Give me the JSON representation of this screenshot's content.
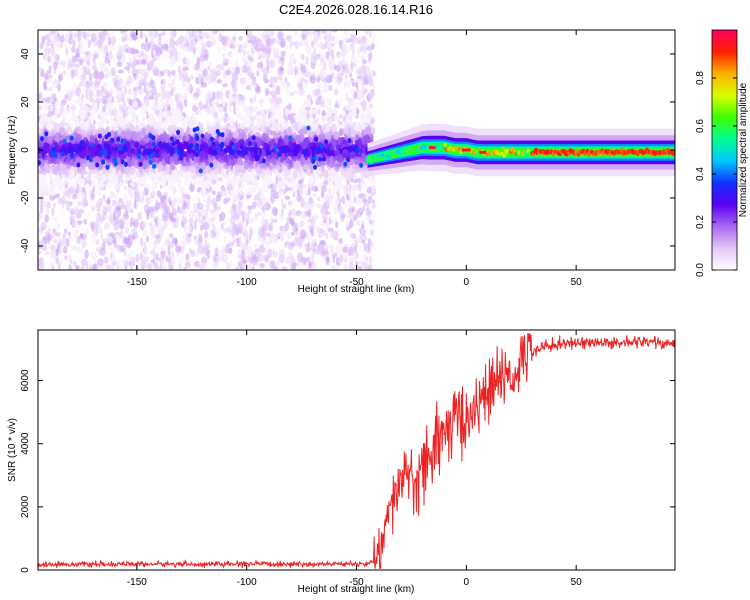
{
  "title": "C2E4.2026.028.16.14.R16",
  "chart_data": [
    {
      "type": "heatmap",
      "xlabel": "Height of straight line (km)",
      "ylabel": "Frequency (Hz)",
      "xlim": [
        -195,
        95
      ],
      "ylim": [
        -50,
        50
      ],
      "xticks": [
        -150,
        -100,
        -50,
        0,
        50
      ],
      "yticks": [
        -40,
        -20,
        0,
        20,
        40
      ],
      "noise_region_x": [
        -195,
        -45
      ],
      "signal_ridge": {
        "x": [
          -45,
          -40,
          -35,
          -30,
          -25,
          -20,
          -15,
          -10,
          -5,
          0,
          5,
          10,
          15,
          20,
          25,
          30,
          40,
          50,
          60,
          70,
          80,
          90,
          95
        ],
        "freq": [
          -4,
          -3,
          -2,
          -1,
          0,
          1,
          1,
          1,
          0,
          0,
          -1,
          -1,
          -1,
          -1,
          -1,
          -1,
          -1,
          -1,
          -1,
          -1,
          -1,
          -1,
          -1
        ]
      },
      "colorbar": {
        "label": "Normalized spectral amplitude",
        "range": [
          0,
          1
        ],
        "ticks": [
          0.0,
          0.2,
          0.4,
          0.6,
          0.8
        ],
        "colors": [
          "#ffffff",
          "#e4c6f7",
          "#a868f2",
          "#5a00f0",
          "#1030ff",
          "#00c8ff",
          "#00ff90",
          "#40ff00",
          "#d8ff00",
          "#ffb000",
          "#ff2000",
          "#ff0060"
        ]
      },
      "grid": false
    },
    {
      "type": "line",
      "xlabel": "Height of straight line (km)",
      "ylabel": "SNR (10 * v/v)",
      "xlim": [
        -195,
        95
      ],
      "ylim": [
        0,
        7600
      ],
      "xticks": [
        -150,
        -100,
        -50,
        0,
        50
      ],
      "yticks": [
        0,
        2000,
        4000,
        6000
      ],
      "color": "#ee2222",
      "series": [
        {
          "x": [
            -195,
            -180,
            -160,
            -140,
            -120,
            -100,
            -80,
            -60,
            -50,
            -45,
            -42,
            -40,
            -38,
            -35,
            -32,
            -30,
            -28,
            -25,
            -22,
            -20,
            -18,
            -16,
            -14,
            -12,
            -10,
            -8,
            -6,
            -4,
            -2,
            0,
            2,
            4,
            6,
            8,
            10,
            12,
            14,
            16,
            18,
            20,
            22,
            25,
            28,
            30,
            35,
            40,
            50,
            60,
            70,
            80,
            90,
            95
          ],
          "y": [
            180,
            180,
            180,
            190,
            180,
            190,
            180,
            190,
            190,
            200,
            280,
            450,
            900,
            1800,
            2400,
            2800,
            3000,
            3100,
            2500,
            3200,
            3400,
            3700,
            4100,
            4300,
            4300,
            4400,
            4500,
            4700,
            4800,
            4800,
            5000,
            5200,
            5400,
            5500,
            5600,
            5800,
            5900,
            6000,
            6100,
            6200,
            6300,
            6600,
            6800,
            6950,
            7100,
            7150,
            7200,
            7200,
            7200,
            7250,
            7200,
            7150
          ]
        }
      ],
      "grid": false
    }
  ]
}
